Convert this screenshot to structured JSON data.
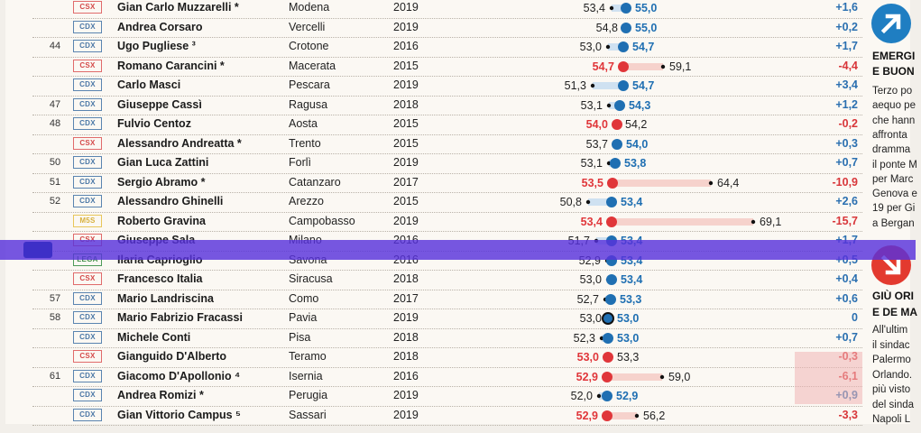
{
  "rows": [
    {
      "rank": "",
      "party": "CSX",
      "name": "Gian Carlo Muzzarelli *",
      "city": "Modena",
      "year": "2019",
      "v1": "53,4",
      "v2": "55,0",
      "d": "+1,6"
    },
    {
      "rank": "",
      "party": "CDX",
      "name": "Andrea Corsaro",
      "city": "Vercelli",
      "year": "2019",
      "v1": "54,8",
      "v2": "55,0",
      "d": "+0,2"
    },
    {
      "rank": "44",
      "party": "CDX",
      "name": "Ugo Pugliese ³",
      "city": "Crotone",
      "year": "2016",
      "v1": "53,0",
      "v2": "54,7",
      "d": "+1,7"
    },
    {
      "rank": "",
      "party": "CSX",
      "name": "Romano Carancini *",
      "city": "Macerata",
      "year": "2015",
      "v1": "59,1",
      "v2": "54,7",
      "d": "-4,4"
    },
    {
      "rank": "",
      "party": "CDX",
      "name": "Carlo Masci",
      "city": "Pescara",
      "year": "2019",
      "v1": "51,3",
      "v2": "54,7",
      "d": "+3,4"
    },
    {
      "rank": "47",
      "party": "CDX",
      "name": "Giuseppe Cassì",
      "city": "Ragusa",
      "year": "2018",
      "v1": "53,1",
      "v2": "54,3",
      "d": "+1,2"
    },
    {
      "rank": "48",
      "party": "CDX",
      "name": "Fulvio Centoz",
      "city": "Aosta",
      "year": "2015",
      "v1": "54,2",
      "v2": "54,0",
      "d": "-0,2"
    },
    {
      "rank": "",
      "party": "CSX",
      "name": "Alessandro Andreatta *",
      "city": "Trento",
      "year": "2015",
      "v1": "53,7",
      "v2": "54,0",
      "d": "+0,3"
    },
    {
      "rank": "50",
      "party": "CDX",
      "name": "Gian Luca Zattini",
      "city": "Forlì",
      "year": "2019",
      "v1": "53,1",
      "v2": "53,8",
      "d": "+0,7"
    },
    {
      "rank": "51",
      "party": "CDX",
      "name": "Sergio Abramo *",
      "city": "Catanzaro",
      "year": "2017",
      "v1": "64,4",
      "v2": "53,5",
      "d": "-10,9"
    },
    {
      "rank": "52",
      "party": "CDX",
      "name": "Alessandro Ghinelli",
      "city": "Arezzo",
      "year": "2015",
      "v1": "50,8",
      "v2": "53,4",
      "d": "+2,6"
    },
    {
      "rank": "",
      "party": "M5S",
      "name": "Roberto Gravina",
      "city": "Campobasso",
      "year": "2019",
      "v1": "69,1",
      "v2": "53,4",
      "d": "-15,7"
    },
    {
      "rank": "",
      "party": "CSX",
      "name": "Giuseppe Sala",
      "city": "Milano",
      "year": "2016",
      "v1": "51,7",
      "v2": "53,4",
      "d": "+1,7"
    },
    {
      "rank": "",
      "party": "LEGA",
      "name": "Ilaria Caprioglio",
      "city": "Savona",
      "year": "2016",
      "v1": "52,9",
      "v2": "53,4",
      "d": "+0,5"
    },
    {
      "rank": "",
      "party": "CSX",
      "name": "Francesco Italia",
      "city": "Siracusa",
      "year": "2018",
      "v1": "53,0",
      "v2": "53,4",
      "d": "+0,4"
    },
    {
      "rank": "57",
      "party": "CDX",
      "name": "Mario Landriscina",
      "city": "Como",
      "year": "2017",
      "v1": "52,7",
      "v2": "53,3",
      "d": "+0,6"
    },
    {
      "rank": "58",
      "party": "CDX",
      "name": "Mario Fabrizio Fracassi",
      "city": "Pavia",
      "year": "2019",
      "v1": "53,0",
      "v2": "53,0",
      "d": "0"
    },
    {
      "rank": "",
      "party": "CDX",
      "name": "Michele Conti",
      "city": "Pisa",
      "year": "2018",
      "v1": "52,3",
      "v2": "53,0",
      "d": "+0,7"
    },
    {
      "rank": "",
      "party": "CSX",
      "name": "Gianguido D'Alberto",
      "city": "Teramo",
      "year": "2018",
      "v1": "53,3",
      "v2": "53,0",
      "d": "-0,3"
    },
    {
      "rank": "61",
      "party": "CDX",
      "name": "Giacomo D'Apollonio ⁴",
      "city": "Isernia",
      "year": "2016",
      "v1": "59,0",
      "v2": "52,9",
      "d": "-6,1"
    },
    {
      "rank": "",
      "party": "CDX",
      "name": "Andrea Romizi *",
      "city": "Perugia",
      "year": "2019",
      "v1": "52,0",
      "v2": "52,9",
      "d": "+0,9"
    },
    {
      "rank": "",
      "party": "CDX",
      "name": "Gian Vittorio Campus ⁵",
      "city": "Sassari",
      "year": "2019",
      "v1": "56,2",
      "v2": "52,9",
      "d": "-3,3"
    }
  ],
  "side": {
    "up_heading": [
      "EMERGI",
      "E BUON"
    ],
    "up_text": [
      "Terzo po",
      "aequo pe",
      "che hann",
      "affronta",
      "dramma",
      "il ponte M",
      "per Marc",
      "Genova e",
      "19 per Gi",
      "a Bergan"
    ],
    "down_heading": [
      "GIÙ ORI",
      "E DE MA"
    ],
    "down_text": [
      "All'ultim",
      "il sindac",
      "Palermo",
      "Orlando.",
      "più visto",
      "del sinda",
      "Napoli L"
    ]
  },
  "colors": {
    "blue": "#1f6fb2",
    "red": "#e0363a",
    "light_blue": "#cfe1f1",
    "light_red": "#f6d2cc",
    "dot_dark": "#111111",
    "blue_circle": "#1f7ec2",
    "red_circle": "#e33a2f"
  }
}
